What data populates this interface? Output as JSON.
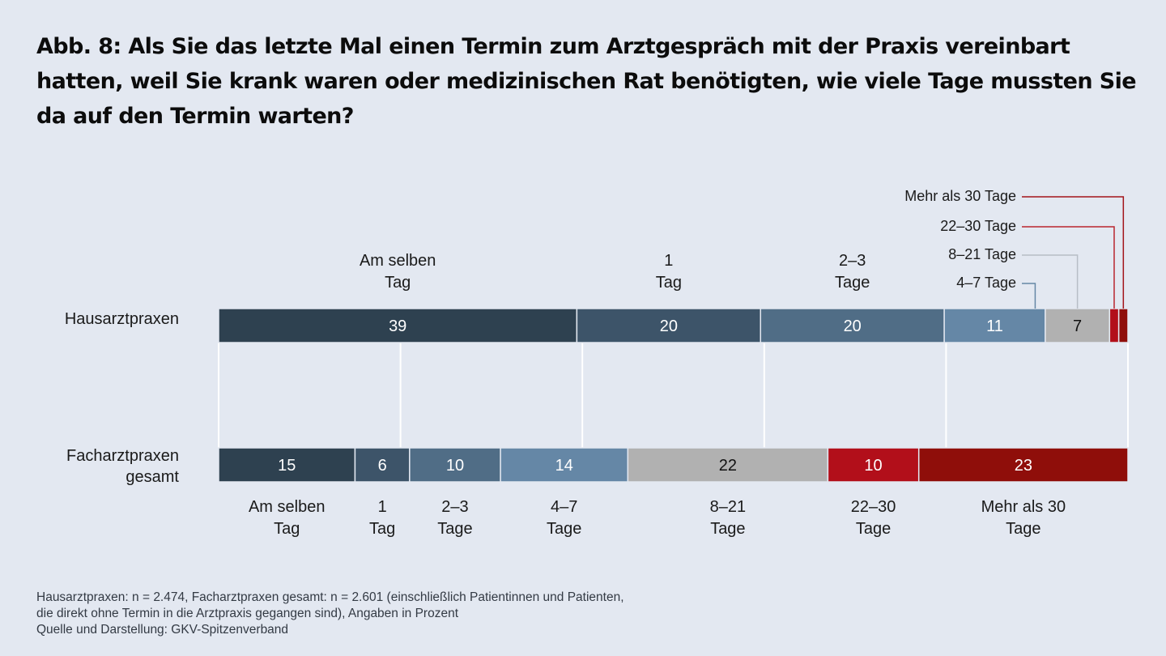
{
  "chart_data": {
    "type": "bar",
    "orientation": "horizontal",
    "stacked": true,
    "title": "Abb. 8: Als Sie das letzte Mal einen Termin zum Arztgespräch mit der Praxis vereinbart hatten, weil Sie krank waren oder medizinischen Rat benötigten, wie viele Tage mussten Sie da auf den Termin warten?",
    "xlabel": "",
    "ylabel": "",
    "unit": "Prozent",
    "xlim": [
      0,
      100
    ],
    "grid": true,
    "gridlines": [
      0,
      20,
      40,
      60,
      80,
      100
    ],
    "categories": [
      "Am selben Tag",
      "1 Tag",
      "2–3 Tage",
      "4–7 Tage",
      "8–21 Tage",
      "22–30 Tage",
      "Mehr als 30 Tage"
    ],
    "category_label_lines": [
      [
        "Am selben",
        "Tag"
      ],
      [
        "1",
        "Tag"
      ],
      [
        "2–3",
        "Tage"
      ],
      [
        "4–7",
        "Tage"
      ],
      [
        "8–21",
        "Tage"
      ],
      [
        "22–30",
        "Tage"
      ],
      [
        "Mehr als 30",
        "Tage"
      ]
    ],
    "colors": [
      "#2e4150",
      "#3d5469",
      "#506d86",
      "#6587a6",
      "#b1b1b1",
      "#b20f1a",
      "#8f0e0a"
    ],
    "value_label_colors": [
      "#ffffff",
      "#ffffff",
      "#ffffff",
      "#ffffff",
      "#111111",
      "#ffffff",
      "#ffffff"
    ],
    "series": [
      {
        "name": "Hausarztpraxen",
        "label_lines": [
          "Hausarztpraxen"
        ],
        "values": [
          39,
          20,
          20,
          11,
          7,
          1,
          1
        ],
        "value_labels": [
          "39",
          "20",
          "20",
          "11",
          "7",
          "",
          ""
        ],
        "inline_category_labels": [
          0,
          1,
          2
        ],
        "leader_category_labels": [
          3,
          4,
          5,
          6
        ]
      },
      {
        "name": "Facharztpraxen gesamt",
        "label_lines": [
          "Facharztpraxen",
          "gesamt"
        ],
        "values": [
          15,
          6,
          10,
          14,
          22,
          10,
          23
        ],
        "value_labels": [
          "15",
          "6",
          "10",
          "14",
          "22",
          "10",
          "23"
        ]
      }
    ],
    "leader_labels": [
      "4–7 Tage",
      "8–21 Tage",
      "22–30 Tage",
      "Mehr als 30 Tage"
    ],
    "leader_colors": [
      "#6587a6",
      "#b8bec6",
      "#b9262f",
      "#a3141a"
    ]
  },
  "footnote": {
    "line1": "Hausarztpraxen: n = 2.474, Facharztpraxen gesamt: n = 2.601 (einschließlich Patientinnen und Patienten,",
    "line2": "die direkt ohne Termin in die Arztpraxis gegangen sind), Angaben in Prozent",
    "line3": "Quelle und Darstellung: GKV-Spitzenverband"
  }
}
